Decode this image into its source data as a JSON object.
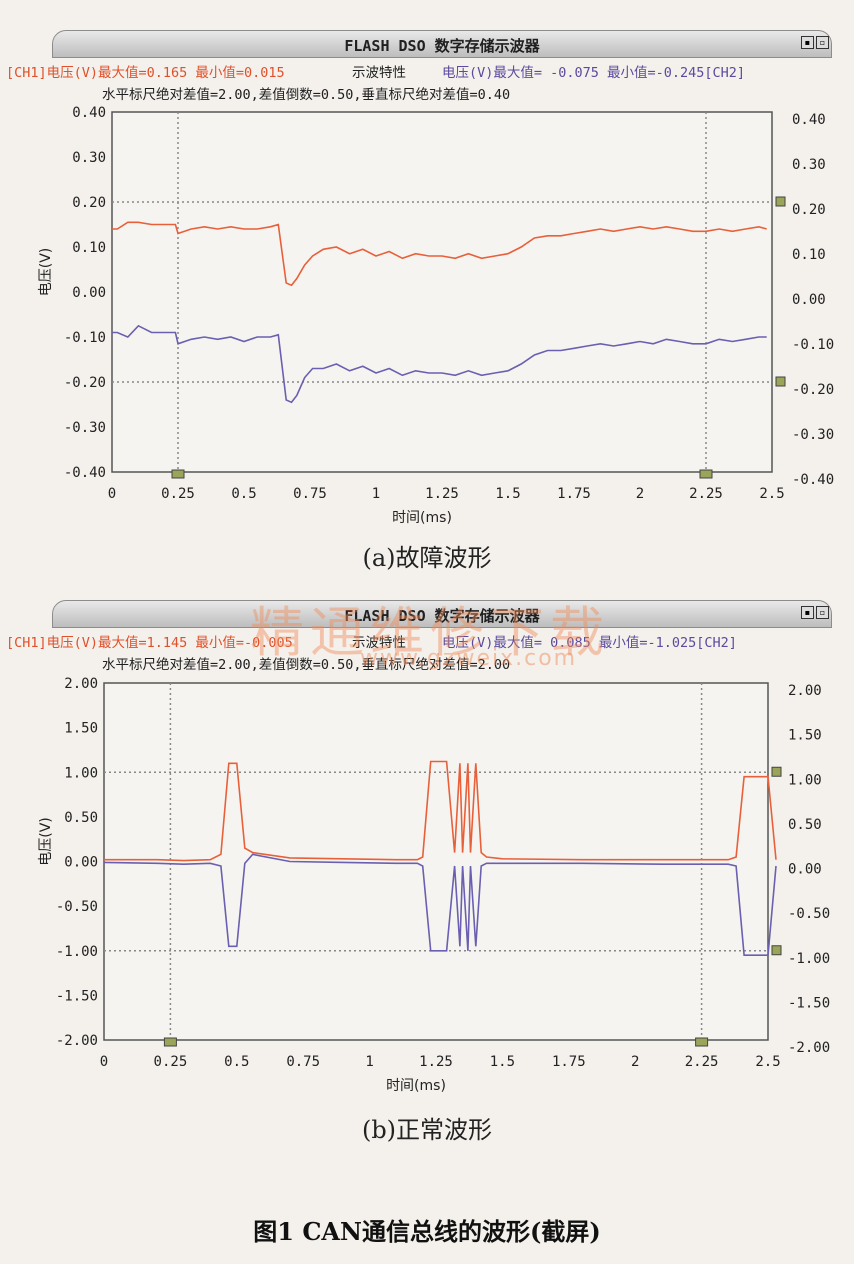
{
  "panels": [
    {
      "window_title": "FLASH DSO 数字存储示波器",
      "ch1_info": "[CH1]电压(V)最大值=0.165 最小值=0.015",
      "mid_info": "示波特性",
      "ch2_info": "电压(V)最大值= -0.075 最小值=-0.245[CH2]",
      "cursor_info": "水平标尺绝对差值=2.00,差值倒数=0.50,垂直标尺绝对差值=0.40",
      "caption": "(a)故障波形"
    },
    {
      "window_title": "FLASH DSO 数字存储示波器",
      "ch1_info": "[CH1]电压(V)最大值=1.145 最小值=-0.005",
      "mid_info": "示波特性",
      "ch2_info": "电压(V)最大值= 0.085 最小值=-1.025[CH2]",
      "cursor_info": "水平标尺绝对差值=2.00,差值倒数=0.50,垂直标尺绝对差值=2.00",
      "caption": "(b)正常波形"
    }
  ],
  "figure_title": "图1   CAN通信总线的波形(截屏)",
  "watermark": "精通维修下载",
  "watermark_url": "www.gzweix.com",
  "colors": {
    "ch1": "#e8603a",
    "ch2": "#6a5fb0",
    "grid": "#888888",
    "axis": "#555555"
  },
  "chart_data": [
    {
      "type": "line",
      "xlabel": "时间(ms)",
      "ylabel": "电压(V)",
      "xlim": [
        0,
        2.5
      ],
      "ylim": [
        -0.4,
        0.4
      ],
      "xticks": [
        0,
        0.25,
        0.5,
        0.75,
        1,
        1.25,
        1.5,
        1.75,
        2,
        2.25,
        2.5
      ],
      "xtick_labels": [
        "0",
        "0.25",
        "0.5",
        "0.75",
        "1",
        "1.25",
        "1.5",
        "1.75",
        "2",
        "2.25",
        "2.5"
      ],
      "yticks": [
        -0.4,
        -0.3,
        -0.2,
        -0.1,
        0.0,
        0.1,
        0.2,
        0.3,
        0.4
      ],
      "ytick_labels": [
        "-0.40",
        "-0.30",
        "-0.20",
        "-0.10",
        "0.00",
        "0.10",
        "0.20",
        "0.30",
        "0.40"
      ],
      "cursors_x": [
        0.25,
        2.25
      ],
      "cursors_y": [
        0.2,
        -0.2
      ],
      "series": [
        {
          "name": "CH1",
          "x": [
            0,
            0.02,
            0.06,
            0.1,
            0.15,
            0.24,
            0.25,
            0.3,
            0.35,
            0.4,
            0.45,
            0.5,
            0.55,
            0.6,
            0.63,
            0.66,
            0.68,
            0.7,
            0.73,
            0.76,
            0.8,
            0.85,
            0.9,
            0.95,
            1.0,
            1.05,
            1.1,
            1.15,
            1.2,
            1.25,
            1.3,
            1.35,
            1.4,
            1.45,
            1.5,
            1.55,
            1.6,
            1.65,
            1.7,
            1.75,
            1.8,
            1.85,
            1.9,
            1.95,
            2.0,
            2.05,
            2.1,
            2.15,
            2.2,
            2.25,
            2.3,
            2.35,
            2.4,
            2.45,
            2.48
          ],
          "y": [
            0.14,
            0.14,
            0.155,
            0.155,
            0.15,
            0.15,
            0.13,
            0.14,
            0.145,
            0.14,
            0.145,
            0.14,
            0.14,
            0.145,
            0.15,
            0.02,
            0.015,
            0.03,
            0.06,
            0.08,
            0.095,
            0.1,
            0.085,
            0.095,
            0.08,
            0.09,
            0.075,
            0.085,
            0.08,
            0.08,
            0.075,
            0.085,
            0.075,
            0.08,
            0.085,
            0.1,
            0.12,
            0.125,
            0.125,
            0.13,
            0.135,
            0.14,
            0.135,
            0.14,
            0.145,
            0.14,
            0.145,
            0.14,
            0.135,
            0.135,
            0.14,
            0.135,
            0.14,
            0.145,
            0.14
          ]
        },
        {
          "name": "CH2",
          "x": [
            0,
            0.02,
            0.06,
            0.1,
            0.15,
            0.24,
            0.25,
            0.3,
            0.35,
            0.4,
            0.45,
            0.5,
            0.55,
            0.6,
            0.63,
            0.66,
            0.68,
            0.7,
            0.73,
            0.76,
            0.8,
            0.85,
            0.9,
            0.95,
            1.0,
            1.05,
            1.1,
            1.15,
            1.2,
            1.25,
            1.3,
            1.35,
            1.4,
            1.45,
            1.5,
            1.55,
            1.6,
            1.65,
            1.7,
            1.75,
            1.8,
            1.85,
            1.9,
            1.95,
            2.0,
            2.05,
            2.1,
            2.15,
            2.2,
            2.25,
            2.3,
            2.35,
            2.4,
            2.45,
            2.48
          ],
          "y": [
            -0.09,
            -0.09,
            -0.1,
            -0.075,
            -0.09,
            -0.09,
            -0.115,
            -0.105,
            -0.1,
            -0.105,
            -0.1,
            -0.11,
            -0.1,
            -0.1,
            -0.095,
            -0.24,
            -0.245,
            -0.23,
            -0.19,
            -0.17,
            -0.17,
            -0.16,
            -0.175,
            -0.165,
            -0.18,
            -0.17,
            -0.185,
            -0.175,
            -0.18,
            -0.18,
            -0.185,
            -0.175,
            -0.185,
            -0.18,
            -0.175,
            -0.16,
            -0.14,
            -0.13,
            -0.13,
            -0.125,
            -0.12,
            -0.115,
            -0.12,
            -0.115,
            -0.11,
            -0.115,
            -0.105,
            -0.11,
            -0.115,
            -0.115,
            -0.105,
            -0.11,
            -0.105,
            -0.1,
            -0.1
          ]
        }
      ]
    },
    {
      "type": "line",
      "xlabel": "时间(ms)",
      "ylabel": "电压(V)",
      "xlim": [
        0,
        2.5
      ],
      "ylim": [
        -2.0,
        2.0
      ],
      "xticks": [
        0,
        0.25,
        0.5,
        0.75,
        1,
        1.25,
        1.5,
        1.75,
        2,
        2.25,
        2.5
      ],
      "xtick_labels": [
        "0",
        "0.25",
        "0.5",
        "0.75",
        "1",
        "1.25",
        "1.5",
        "1.75",
        "2",
        "2.25",
        "2.5"
      ],
      "yticks": [
        -2.0,
        -1.5,
        -1.0,
        -0.5,
        0.0,
        0.5,
        1.0,
        1.5,
        2.0
      ],
      "ytick_labels": [
        "-2.00",
        "-1.50",
        "-1.00",
        "-0.50",
        "0.00",
        "0.50",
        "1.00",
        "1.50",
        "2.00"
      ],
      "cursors_x": [
        0.25,
        2.25
      ],
      "cursors_y": [
        1.0,
        -1.0
      ],
      "series": [
        {
          "name": "CH1",
          "x": [
            0,
            0.2,
            0.3,
            0.4,
            0.44,
            0.47,
            0.5,
            0.53,
            0.56,
            0.7,
            0.9,
            1.1,
            1.18,
            1.2,
            1.23,
            1.29,
            1.32,
            1.34,
            1.35,
            1.37,
            1.38,
            1.4,
            1.42,
            1.44,
            1.5,
            1.8,
            2.1,
            2.35,
            2.38,
            2.41,
            2.5,
            2.53
          ],
          "y": [
            0.02,
            0.02,
            0.01,
            0.02,
            0.08,
            1.1,
            1.1,
            0.15,
            0.1,
            0.04,
            0.03,
            0.02,
            0.02,
            0.05,
            1.12,
            1.12,
            0.1,
            1.1,
            0.1,
            1.1,
            0.1,
            1.1,
            0.1,
            0.05,
            0.03,
            0.02,
            0.02,
            0.02,
            0.05,
            0.95,
            0.95,
            0.02
          ]
        },
        {
          "name": "CH2",
          "x": [
            0,
            0.2,
            0.3,
            0.4,
            0.44,
            0.47,
            0.5,
            0.53,
            0.56,
            0.7,
            0.9,
            1.1,
            1.18,
            1.2,
            1.23,
            1.29,
            1.32,
            1.34,
            1.35,
            1.37,
            1.38,
            1.4,
            1.42,
            1.44,
            1.5,
            1.8,
            2.1,
            2.35,
            2.38,
            2.41,
            2.5,
            2.53
          ],
          "y": [
            -0.01,
            -0.02,
            -0.03,
            -0.02,
            -0.05,
            -0.95,
            -0.95,
            -0.02,
            0.08,
            0.0,
            -0.01,
            -0.02,
            -0.02,
            -0.05,
            -1.0,
            -1.0,
            -0.05,
            -0.95,
            -0.05,
            -1.0,
            -0.05,
            -0.95,
            -0.05,
            -0.02,
            -0.02,
            -0.02,
            -0.03,
            -0.03,
            -0.05,
            -1.05,
            -1.05,
            -0.05
          ]
        }
      ]
    }
  ]
}
